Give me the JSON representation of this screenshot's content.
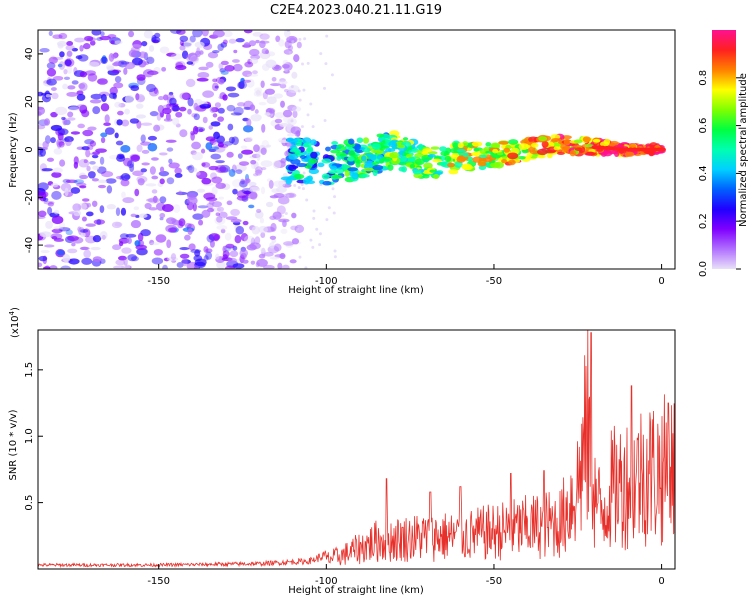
{
  "title": "C2E4.2023.040.21.11.G19",
  "colors": {
    "snr_line": "#e8302a",
    "axis": "#000000",
    "colorbar_stops": [
      "#e8e0f8",
      "#b070ff",
      "#8000ff",
      "#2000ff",
      "#0060ff",
      "#00d0ff",
      "#00ffb0",
      "#00ff40",
      "#80ff00",
      "#ffff00",
      "#ff8000",
      "#ff2020",
      "#ff1090"
    ]
  },
  "chart_data": [
    {
      "type": "heatmap",
      "name": "spectrogram",
      "xlabel": "Height of straight line (km)",
      "ylabel": "Frequency (Hz)",
      "xlim": [
        -186,
        4
      ],
      "ylim": [
        -50,
        50
      ],
      "xticks": [
        -150,
        -100,
        -50,
        0
      ],
      "yticks": [
        -40,
        -20,
        0,
        20,
        40
      ],
      "colorbar": {
        "label": "Normalized spectral amplitude",
        "range": [
          0,
          1
        ],
        "ticks": [
          "0.0",
          "0.2",
          "0.4",
          "0.6",
          "0.8"
        ]
      },
      "noise_region_x": [
        -186,
        -112
      ],
      "signal_track": [
        {
          "x": -112,
          "y": -4
        },
        {
          "x": -100,
          "y": -6
        },
        {
          "x": -90,
          "y": -4
        },
        {
          "x": -80,
          "y": 0
        },
        {
          "x": -70,
          "y": -6
        },
        {
          "x": -60,
          "y": -3
        },
        {
          "x": -50,
          "y": -2
        },
        {
          "x": -40,
          "y": 0
        },
        {
          "x": -30,
          "y": 2
        },
        {
          "x": -20,
          "y": 1
        },
        {
          "x": -10,
          "y": 0
        },
        {
          "x": 0,
          "y": 0
        }
      ]
    },
    {
      "type": "line",
      "name": "snr",
      "xlabel": "Height of straight line (km)",
      "ylabel": "SNR (10 * v/v)",
      "multiplier": "(x10",
      "multiplier_exp": "4",
      "multiplier_close": ")",
      "xlim": [
        -186,
        4
      ],
      "ylim": [
        0,
        1.8
      ],
      "xticks": [
        -150,
        -100,
        -50,
        0
      ],
      "yticks": [
        0.5,
        1.0,
        1.5
      ],
      "ytick_labels": [
        "0.5",
        "1.0",
        "1.5"
      ],
      "envelope": [
        {
          "x": -186,
          "y": 0.03
        },
        {
          "x": -150,
          "y": 0.03
        },
        {
          "x": -120,
          "y": 0.04
        },
        {
          "x": -105,
          "y": 0.06
        },
        {
          "x": -95,
          "y": 0.15
        },
        {
          "x": -85,
          "y": 0.3
        },
        {
          "x": -70,
          "y": 0.35
        },
        {
          "x": -60,
          "y": 0.35
        },
        {
          "x": -50,
          "y": 0.4
        },
        {
          "x": -40,
          "y": 0.45
        },
        {
          "x": -30,
          "y": 0.5
        },
        {
          "x": -25,
          "y": 0.9
        },
        {
          "x": -22,
          "y": 1.5
        },
        {
          "x": -20,
          "y": 0.8
        },
        {
          "x": -18,
          "y": 0.6
        },
        {
          "x": -15,
          "y": 0.85
        },
        {
          "x": -10,
          "y": 0.95
        },
        {
          "x": -5,
          "y": 1.05
        },
        {
          "x": 0,
          "y": 1.05
        },
        {
          "x": 4,
          "y": 1.1
        }
      ],
      "peaks": [
        {
          "x": -82,
          "y": 0.68
        },
        {
          "x": -69,
          "y": 0.58
        },
        {
          "x": -60,
          "y": 0.62
        },
        {
          "x": -45,
          "y": 0.72
        },
        {
          "x": -35,
          "y": 0.74
        },
        {
          "x": -21,
          "y": 1.78
        },
        {
          "x": -9,
          "y": 1.38
        },
        {
          "x": 2,
          "y": 1.25
        }
      ]
    }
  ]
}
